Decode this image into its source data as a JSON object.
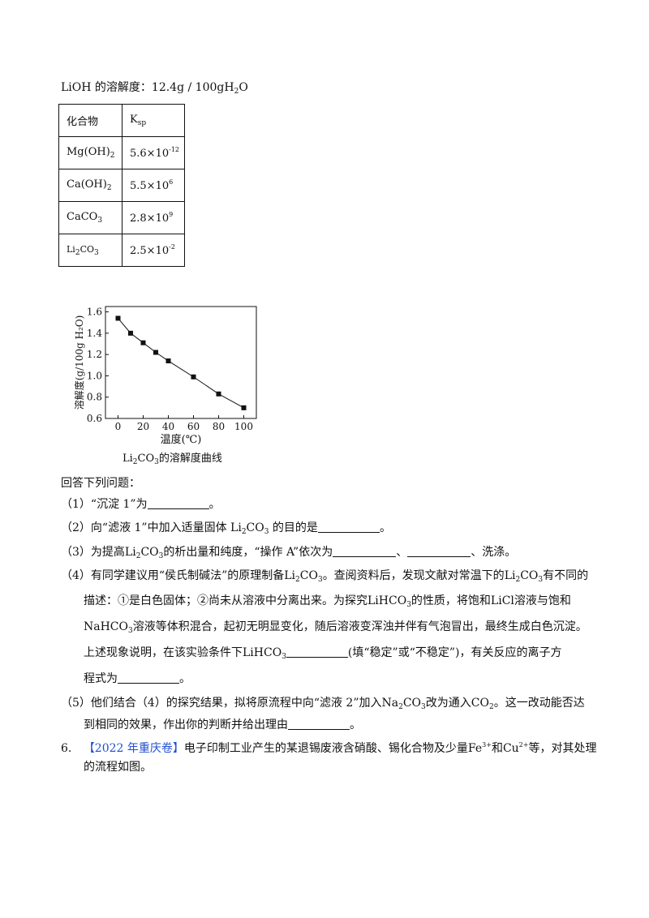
{
  "header": {
    "lioh_label": "LiOH 的溶解度：",
    "lioh_value": "12.4g / 100gH",
    "lioh_sub": "2",
    "lioh_tail": "O"
  },
  "ksp_table": {
    "header_col1": "化合物",
    "header_col2_main": "K",
    "header_col2_sub": "sp",
    "rows": [
      {
        "compound_main": "Mg",
        "compound_rest": "(OH)",
        "compound_sub": "2",
        "mantissa": "5.6×10",
        "exponent": "-12"
      },
      {
        "compound_main": "Ca",
        "compound_rest": "(OH)",
        "compound_sub": "2",
        "mantissa": "5.5×10",
        "exponent": "6"
      },
      {
        "compound_main": "CaCO",
        "compound_rest": "",
        "compound_sub": "3",
        "mantissa": "2.8×10",
        "exponent": "9"
      },
      {
        "compound_main": "Li",
        "compound_rest": "CO",
        "compound_sub": "2",
        "compound_sub2": "3",
        "mantissa": "2.5×10",
        "exponent": "-2"
      }
    ]
  },
  "chart_data": {
    "type": "line",
    "title": "",
    "xlabel": "温度(℃)",
    "ylabel": "溶解度(g/100g H₂O)",
    "x": [
      0,
      10,
      20,
      30,
      40,
      60,
      80,
      100
    ],
    "y": [
      1.54,
      1.4,
      1.31,
      1.22,
      1.14,
      0.99,
      0.83,
      0.7
    ],
    "xlim": [
      -10,
      110
    ],
    "ylim": [
      0.6,
      1.65
    ],
    "xticks": [
      "0",
      "20",
      "40",
      "60",
      "80",
      "100"
    ],
    "yticks": [
      "0.6",
      "0.8",
      "1.0",
      "1.2",
      "1.4",
      "1.6"
    ],
    "xtick_values": [
      0,
      20,
      40,
      60,
      80,
      100
    ],
    "ytick_values": [
      0.6,
      0.8,
      1.0,
      1.2,
      1.4,
      1.6
    ],
    "marker": "square",
    "grid": false,
    "caption_pre": "Li",
    "caption_sub1": "2",
    "caption_mid": "CO",
    "caption_sub2": "3",
    "caption_post": "的溶解度曲线"
  },
  "questions": {
    "intro": "回答下列问题：",
    "q1_a": "（1）“沉淀 1”为",
    "q1_b": "。",
    "q2_a": "（2）向“滤液 1”中加入适量固体 ",
    "q2_b": " 的目的是",
    "q2_c": "。",
    "q3_a": "（3）为提高",
    "q3_b": "的析出量和纯度，“操作 A”依次为",
    "q3_c": "、",
    "q3_d": "、洗涤。",
    "q4_a": "（4）有同学建议用“侯氏制碱法”的原理制备",
    "q4_b": "。查阅资料后，发现文献对常温下的",
    "q4_c": "有不同的",
    "q4_l2": "描述：①是白色固体；②尚未从溶液中分离出来。为探究",
    "q4_l2b": "的性质，将饱和",
    "q4_l2c": "溶液与饱和",
    "q4_l3": "溶液等体积混合，起初无明显变化，随后溶液变浑浊并伴有气泡冒出，最终生成白色沉淀。",
    "q4_l4a": "上述现象说明，在该实验条件下",
    "q4_l4b": "(填“稳定”或“不稳定”)，有关反应的离子方",
    "q4_l5a": "程式为",
    "q4_l5b": "。",
    "q5_a": "（5）他们结合（4）的探究结果，拟将原流程中向“滤液 2”加入",
    "q5_b": "改为通入",
    "q5_c": "。这一改动能否达",
    "q5_l2a": "到相同的效果，作出你的判断并给出理由",
    "q5_l2b": "。",
    "q6_num": "6.",
    "q6_src": "【2022 年重庆卷】",
    "q6_a": "电子印制工业产生的某退锡废液含硝酸、锡化合物及少量",
    "q6_fe": "Fe",
    "q6_fe_sup": "3+",
    "q6_and": "和",
    "q6_cu": "Cu",
    "q6_cu_sup": "2+",
    "q6_b": "等，对其处理",
    "q6_l2": "的流程如图。"
  },
  "chem": {
    "li": "Li",
    "co": "CO",
    "lihco": "LiHCO",
    "licl": "LiCl",
    "nahco": "NaHCO",
    "na": "Na",
    "co2_main": "CO",
    "s2": "2",
    "s3": "3"
  },
  "colors": {
    "source_tag": "#1f4fd1",
    "text": "#111111"
  }
}
